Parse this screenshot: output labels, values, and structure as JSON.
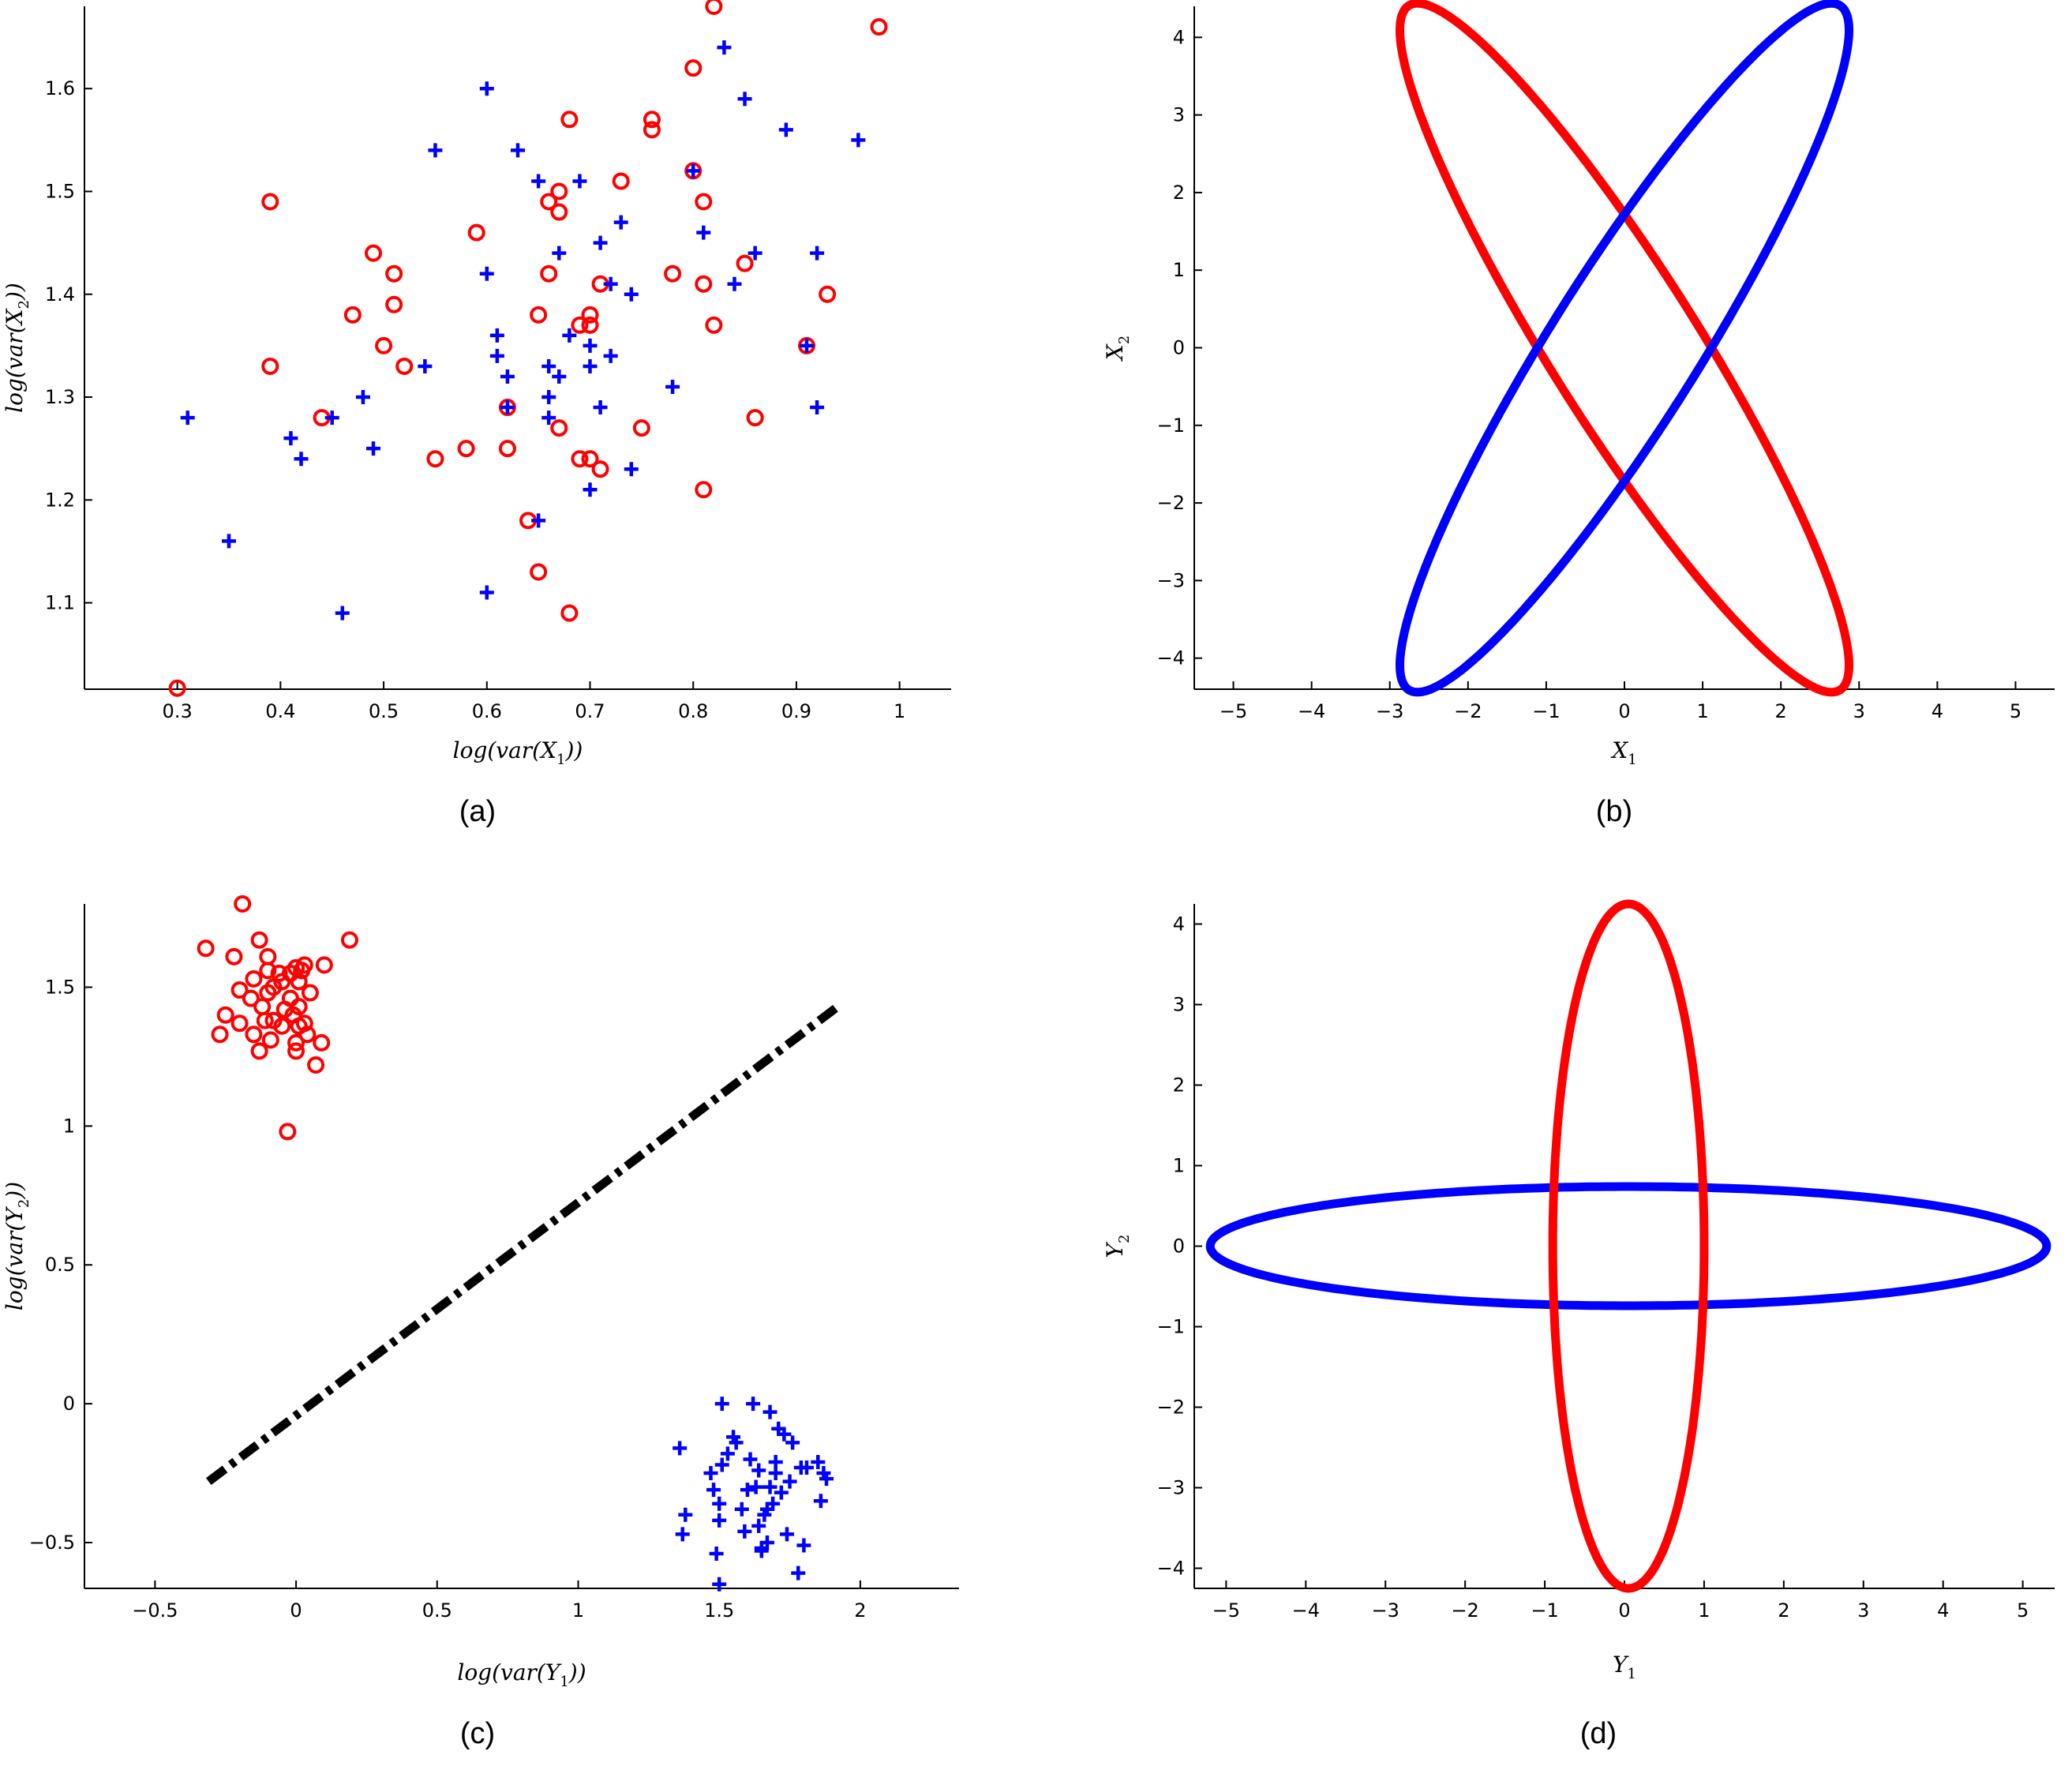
{
  "colors": {
    "class1": "#ff0000",
    "class2": "#0000ff",
    "boundary": "#000000"
  },
  "chart_data": [
    {
      "type": "scatter",
      "panel": "(a)",
      "xlabel": {
        "pre": "log(var(X",
        "sub": "1",
        "post": "))"
      },
      "ylabel": {
        "pre": "log(var(X",
        "sub": "2",
        "post": "))"
      },
      "xlim": [
        0.21,
        1.05
      ],
      "ylim": [
        1.016,
        1.68
      ],
      "xticks": [
        0.3,
        0.4,
        0.5,
        0.6,
        0.7,
        0.8,
        0.9,
        1
      ],
      "xtick_labels": [
        "0.3",
        "0.4",
        "0.5",
        "0.6",
        "0.7",
        "0.8",
        "0.9",
        "1"
      ],
      "yticks": [
        1.1,
        1.2,
        1.3,
        1.4,
        1.5,
        1.6
      ],
      "ytick_labels": [
        "1.1",
        "1.2",
        "1.3",
        "1.4",
        "1.5",
        "1.6"
      ],
      "series": [
        {
          "marker": "circle",
          "color": "#ff0000",
          "points": [
            [
              0.3,
              1.017
            ],
            [
              0.39,
              1.33
            ],
            [
              0.39,
              1.49
            ],
            [
              0.44,
              1.28
            ],
            [
              0.47,
              1.38
            ],
            [
              0.49,
              1.44
            ],
            [
              0.5,
              1.35
            ],
            [
              0.51,
              1.42
            ],
            [
              0.51,
              1.39
            ],
            [
              0.52,
              1.33
            ],
            [
              0.55,
              1.24
            ],
            [
              0.58,
              1.25
            ],
            [
              0.59,
              1.46
            ],
            [
              0.62,
              1.29
            ],
            [
              0.62,
              1.25
            ],
            [
              0.64,
              1.18
            ],
            [
              0.65,
              1.13
            ],
            [
              0.65,
              1.38
            ],
            [
              0.66,
              1.42
            ],
            [
              0.66,
              1.49
            ],
            [
              0.67,
              1.5
            ],
            [
              0.67,
              1.48
            ],
            [
              0.67,
              1.27
            ],
            [
              0.68,
              1.57
            ],
            [
              0.68,
              1.09
            ],
            [
              0.69,
              1.24
            ],
            [
              0.69,
              1.37
            ],
            [
              0.7,
              1.37
            ],
            [
              0.7,
              1.24
            ],
            [
              0.7,
              1.38
            ],
            [
              0.71,
              1.23
            ],
            [
              0.71,
              1.41
            ],
            [
              0.73,
              1.51
            ],
            [
              0.75,
              1.27
            ],
            [
              0.76,
              1.57
            ],
            [
              0.76,
              1.56
            ],
            [
              0.78,
              1.42
            ],
            [
              0.8,
              1.62
            ],
            [
              0.8,
              1.52
            ],
            [
              0.81,
              1.49
            ],
            [
              0.81,
              1.41
            ],
            [
              0.81,
              1.21
            ],
            [
              0.82,
              1.68
            ],
            [
              0.82,
              1.37
            ],
            [
              0.85,
              1.43
            ],
            [
              0.86,
              1.28
            ],
            [
              0.91,
              1.35
            ],
            [
              0.93,
              1.4
            ],
            [
              0.98,
              1.66
            ]
          ]
        },
        {
          "marker": "plus",
          "color": "#0000ff",
          "points": [
            [
              0.31,
              1.28
            ],
            [
              0.35,
              1.16
            ],
            [
              0.41,
              1.26
            ],
            [
              0.42,
              1.24
            ],
            [
              0.45,
              1.28
            ],
            [
              0.46,
              1.09
            ],
            [
              0.48,
              1.3
            ],
            [
              0.49,
              1.25
            ],
            [
              0.54,
              1.33
            ],
            [
              0.55,
              1.54
            ],
            [
              0.6,
              1.11
            ],
            [
              0.6,
              1.42
            ],
            [
              0.6,
              1.6
            ],
            [
              0.61,
              1.34
            ],
            [
              0.61,
              1.36
            ],
            [
              0.62,
              1.29
            ],
            [
              0.62,
              1.32
            ],
            [
              0.63,
              1.54
            ],
            [
              0.65,
              1.51
            ],
            [
              0.65,
              1.18
            ],
            [
              0.66,
              1.28
            ],
            [
              0.66,
              1.3
            ],
            [
              0.66,
              1.33
            ],
            [
              0.67,
              1.32
            ],
            [
              0.67,
              1.44
            ],
            [
              0.68,
              1.36
            ],
            [
              0.69,
              1.51
            ],
            [
              0.7,
              1.33
            ],
            [
              0.7,
              1.21
            ],
            [
              0.7,
              1.35
            ],
            [
              0.71,
              1.29
            ],
            [
              0.71,
              1.45
            ],
            [
              0.72,
              1.41
            ],
            [
              0.72,
              1.34
            ],
            [
              0.73,
              1.47
            ],
            [
              0.74,
              1.4
            ],
            [
              0.74,
              1.23
            ],
            [
              0.78,
              1.31
            ],
            [
              0.8,
              1.52
            ],
            [
              0.81,
              1.46
            ],
            [
              0.83,
              1.64
            ],
            [
              0.84,
              1.41
            ],
            [
              0.85,
              1.59
            ],
            [
              0.86,
              1.44
            ],
            [
              0.89,
              1.56
            ],
            [
              0.91,
              1.35
            ],
            [
              0.92,
              1.44
            ],
            [
              0.92,
              1.29
            ],
            [
              0.96,
              1.55
            ]
          ]
        }
      ]
    },
    {
      "type": "line",
      "panel": "(b)",
      "xlabel": {
        "pre": "X",
        "sub": "1",
        "post": ""
      },
      "ylabel": {
        "pre": "X",
        "sub": "2",
        "post": ""
      },
      "xlim": [
        -5.5,
        5.5
      ],
      "ylim": [
        -4.4,
        4.4
      ],
      "xticks": [
        -5,
        -4,
        -3,
        -2,
        -1,
        0,
        1,
        2,
        3,
        4,
        5
      ],
      "xtick_labels": [
        "−5",
        "−4",
        "−3",
        "−2",
        "−1",
        "0",
        "1",
        "2",
        "3",
        "4",
        "5"
      ],
      "yticks": [
        -4,
        -3,
        -2,
        -1,
        0,
        1,
        2,
        3,
        4
      ],
      "ytick_labels": [
        "−4",
        "−3",
        "−2",
        "−1",
        "0",
        "1",
        "2",
        "3",
        "4"
      ],
      "ellipses": [
        {
          "color": "#ff0000",
          "a": 5.2,
          "b": 0.95,
          "angle_deg": -58,
          "cx": 0,
          "cy": 0
        },
        {
          "color": "#0000ff",
          "a": 5.2,
          "b": 0.95,
          "angle_deg": 58,
          "cx": 0,
          "cy": 0
        }
      ]
    },
    {
      "type": "scatter",
      "panel": "(c)",
      "xlabel": {
        "pre": "log(var(Y",
        "sub": "1",
        "post": "))"
      },
      "ylabel": {
        "pre": "log(var(Y",
        "sub": "2",
        "post": "))"
      },
      "xlim": [
        -0.75,
        2.35
      ],
      "ylim": [
        -0.665,
        1.8
      ],
      "xticks": [
        -0.5,
        0,
        0.5,
        1,
        1.5,
        2
      ],
      "xtick_labels": [
        "−0.5",
        "0",
        "0.5",
        "1",
        "1.5",
        "2"
      ],
      "yticks": [
        -0.5,
        0,
        0.5,
        1,
        1.5
      ],
      "ytick_labels": [
        "−0.5",
        "0",
        "0.5",
        "1",
        "1.5"
      ],
      "series": [
        {
          "marker": "circle",
          "color": "#ff0000",
          "points": [
            [
              -0.32,
              1.64
            ],
            [
              -0.27,
              1.33
            ],
            [
              -0.25,
              1.4
            ],
            [
              -0.22,
              1.61
            ],
            [
              -0.2,
              1.49
            ],
            [
              -0.2,
              1.37
            ],
            [
              -0.19,
              1.8
            ],
            [
              -0.16,
              1.46
            ],
            [
              -0.15,
              1.33
            ],
            [
              -0.15,
              1.53
            ],
            [
              -0.13,
              1.67
            ],
            [
              -0.13,
              1.27
            ],
            [
              -0.12,
              1.43
            ],
            [
              -0.11,
              1.38
            ],
            [
              -0.1,
              1.48
            ],
            [
              -0.1,
              1.56
            ],
            [
              -0.1,
              1.61
            ],
            [
              -0.09,
              1.31
            ],
            [
              -0.08,
              1.38
            ],
            [
              -0.08,
              1.5
            ],
            [
              -0.06,
              1.55
            ],
            [
              -0.05,
              1.52
            ],
            [
              -0.05,
              1.36
            ],
            [
              -0.04,
              1.42
            ],
            [
              -0.03,
              0.98
            ],
            [
              -0.02,
              1.46
            ],
            [
              -0.02,
              1.55
            ],
            [
              -0.01,
              1.4
            ],
            [
              0.0,
              1.57
            ],
            [
              0.0,
              1.3
            ],
            [
              0.0,
              1.27
            ],
            [
              0.01,
              1.36
            ],
            [
              0.01,
              1.43
            ],
            [
              0.01,
              1.52
            ],
            [
              0.02,
              1.56
            ],
            [
              0.03,
              1.37
            ],
            [
              0.03,
              1.58
            ],
            [
              0.04,
              1.33
            ],
            [
              0.05,
              1.48
            ],
            [
              0.07,
              1.22
            ],
            [
              0.09,
              1.3
            ],
            [
              0.1,
              1.58
            ],
            [
              0.19,
              1.67
            ]
          ]
        },
        {
          "marker": "plus",
          "color": "#0000ff",
          "points": [
            [
              1.36,
              -0.16
            ],
            [
              1.37,
              -0.47
            ],
            [
              1.38,
              -0.4
            ],
            [
              1.47,
              -0.25
            ],
            [
              1.48,
              -0.31
            ],
            [
              1.49,
              -0.54
            ],
            [
              1.5,
              -0.36
            ],
            [
              1.5,
              -0.42
            ],
            [
              1.5,
              -0.65
            ],
            [
              1.51,
              -0.22
            ],
            [
              1.51,
              0.0
            ],
            [
              1.53,
              -0.18
            ],
            [
              1.55,
              -0.12
            ],
            [
              1.56,
              -0.14
            ],
            [
              1.58,
              -0.38
            ],
            [
              1.59,
              -0.46
            ],
            [
              1.6,
              -0.31
            ],
            [
              1.61,
              -0.2
            ],
            [
              1.62,
              0.0
            ],
            [
              1.63,
              -0.3
            ],
            [
              1.64,
              -0.24
            ],
            [
              1.64,
              -0.44
            ],
            [
              1.65,
              -0.52
            ],
            [
              1.65,
              -0.53
            ],
            [
              1.66,
              -0.4
            ],
            [
              1.67,
              -0.5
            ],
            [
              1.67,
              -0.38
            ],
            [
              1.68,
              -0.3
            ],
            [
              1.68,
              -0.03
            ],
            [
              1.69,
              -0.36
            ],
            [
              1.7,
              -0.25
            ],
            [
              1.7,
              -0.21
            ],
            [
              1.71,
              -0.09
            ],
            [
              1.72,
              -0.32
            ],
            [
              1.73,
              -0.11
            ],
            [
              1.74,
              -0.47
            ],
            [
              1.75,
              -0.28
            ],
            [
              1.76,
              -0.14
            ],
            [
              1.78,
              -0.61
            ],
            [
              1.79,
              -0.23
            ],
            [
              1.8,
              -0.51
            ],
            [
              1.81,
              -0.23
            ],
            [
              1.85,
              -0.21
            ],
            [
              1.86,
              -0.35
            ],
            [
              1.87,
              -0.25
            ],
            [
              1.88,
              -0.27
            ]
          ]
        }
      ],
      "boundary": {
        "color": "#000000",
        "from": [
          -0.31,
          -0.28
        ],
        "to": [
          1.92,
          1.43
        ]
      }
    },
    {
      "type": "line",
      "panel": "(d)",
      "xlabel": {
        "pre": "Y",
        "sub": "1",
        "post": ""
      },
      "ylabel": {
        "pre": "Y",
        "sub": "2",
        "post": ""
      },
      "xlim": [
        -5.4,
        5.4
      ],
      "ylim": [
        -4.25,
        4.25
      ],
      "xticks": [
        -5,
        -4,
        -3,
        -2,
        -1,
        0,
        1,
        2,
        3,
        4,
        5
      ],
      "xtick_labels": [
        "−5",
        "−4",
        "−3",
        "−2",
        "−1",
        "0",
        "1",
        "2",
        "3",
        "4",
        "5"
      ],
      "yticks": [
        -4,
        -3,
        -2,
        -1,
        0,
        1,
        2,
        3,
        4
      ],
      "ytick_labels": [
        "−4",
        "−3",
        "−2",
        "−1",
        "0",
        "1",
        "2",
        "3",
        "4"
      ],
      "ellipses": [
        {
          "color": "#0000ff",
          "a": 5.25,
          "b": 0.74,
          "angle_deg": 0,
          "cx": 0.05,
          "cy": 0
        },
        {
          "color": "#ff0000",
          "a": 0.95,
          "b": 4.25,
          "angle_deg": 0,
          "cx": 0.05,
          "cy": 0
        }
      ]
    }
  ]
}
